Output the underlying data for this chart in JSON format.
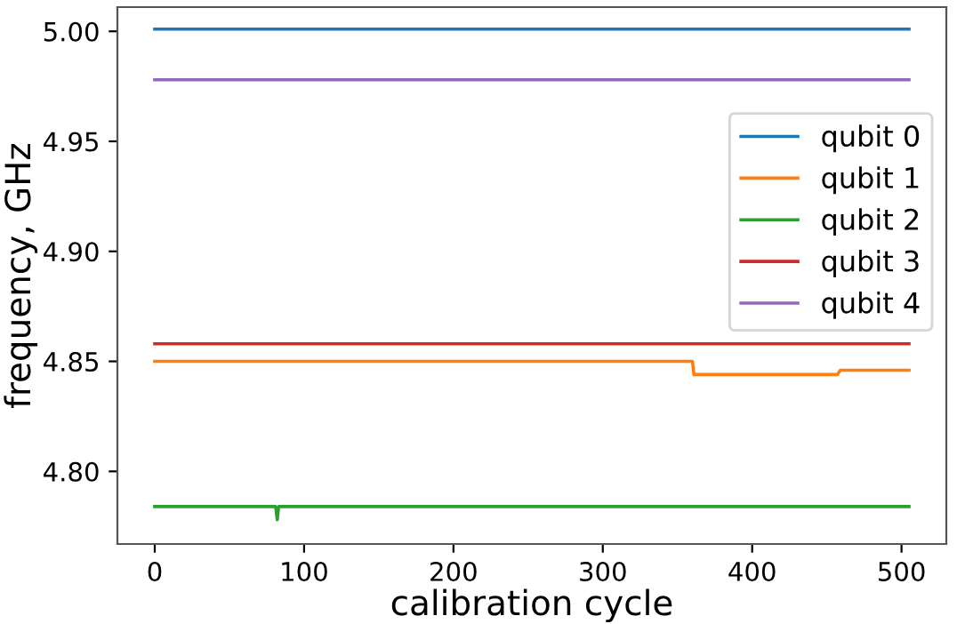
{
  "chart_data": {
    "type": "line",
    "xlabel": "calibration cycle",
    "ylabel": "frequency, GHz",
    "xlim": [
      -25,
      530
    ],
    "ylim": [
      4.767,
      5.011
    ],
    "xticks": [
      0,
      100,
      200,
      300,
      400,
      500
    ],
    "yticks": [
      {
        "value": 4.8,
        "label": "4.80"
      },
      {
        "value": 4.85,
        "label": "4.85"
      },
      {
        "value": 4.9,
        "label": "4.90"
      },
      {
        "value": 4.95,
        "label": "4.95"
      },
      {
        "value": 5.0,
        "label": "5.00"
      }
    ],
    "grid": false,
    "legend": "right",
    "marker": "none",
    "line_style": "solid",
    "series": [
      {
        "name": "qubit 0",
        "color": "#1f77b4",
        "x": [
          0,
          505
        ],
        "values": [
          5.001,
          5.001
        ]
      },
      {
        "name": "qubit 1",
        "color": "#ff7f0e",
        "x": [
          0,
          360,
          361,
          457,
          459,
          505
        ],
        "values": [
          4.85,
          4.85,
          4.844,
          4.844,
          4.846,
          4.846
        ]
      },
      {
        "name": "qubit 2",
        "color": "#2ca02c",
        "x": [
          0,
          81,
          82,
          83,
          505
        ],
        "values": [
          4.784,
          4.784,
          4.778,
          4.784,
          4.784
        ]
      },
      {
        "name": "qubit 3",
        "color": "#d62728",
        "x": [
          0,
          505
        ],
        "values": [
          4.858,
          4.858
        ]
      },
      {
        "name": "qubit 4",
        "color": "#9467bd",
        "x": [
          0,
          505
        ],
        "values": [
          4.978,
          4.978
        ]
      }
    ]
  }
}
